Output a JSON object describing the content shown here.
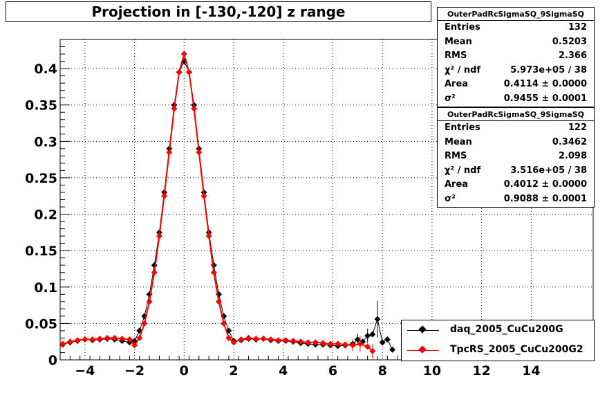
{
  "title": "Projection in [-130,-120] z range",
  "stats": [
    {
      "name": "OuterPadRcSigmaSQ_9SigmaSQ",
      "rows": [
        {
          "label": "Entries",
          "value": "132"
        },
        {
          "label": "Mean",
          "value": "0.5203"
        },
        {
          "label": "RMS",
          "value": "2.366"
        },
        {
          "label": "χ² / ndf",
          "value": "5.973e+05 / 38"
        },
        {
          "label": "Area",
          "value": "0.4114 ± 0.0000"
        },
        {
          "label": "σ²",
          "value": "0.9455 ± 0.0001"
        }
      ]
    },
    {
      "name": "OuterPadRcSigmaSQ_9SigmaSQ",
      "rows": [
        {
          "label": "Entries",
          "value": "122"
        },
        {
          "label": "Mean",
          "value": "0.3462"
        },
        {
          "label": "RMS",
          "value": "2.098"
        },
        {
          "label": "χ² / ndf",
          "value": "3.516e+05 / 38"
        },
        {
          "label": "Area",
          "value": "0.4012 ± 0.0000"
        },
        {
          "label": "σ²",
          "value": "0.9088 ± 0.0001"
        }
      ]
    }
  ],
  "legend": [
    {
      "label": "daq_2005_CuCu200G",
      "color": "#000000"
    },
    {
      "label": "TpcRS_2005_CuCu200G2",
      "color": "#ff0000"
    }
  ],
  "chart_data": {
    "type": "scatter",
    "title": "Projection in [-130,-120] z range",
    "xlabel": "",
    "ylabel": "",
    "xlim": [
      -5,
      16.5
    ],
    "ylim": [
      0,
      0.44
    ],
    "xticks": [
      "−4",
      "−2",
      "0",
      "2",
      "4",
      "6",
      "8",
      "10",
      "12",
      "14"
    ],
    "xtick_values": [
      -4,
      -2,
      0,
      2,
      4,
      6,
      8,
      10,
      12,
      14
    ],
    "yticks": [
      "0",
      "0.05",
      "0.1",
      "0.15",
      "0.2",
      "0.25",
      "0.3",
      "0.35",
      "0.4"
    ],
    "ytick_values": [
      0,
      0.05,
      0.1,
      0.15,
      0.2,
      0.25,
      0.3,
      0.35,
      0.4
    ],
    "grid": true,
    "series": [
      {
        "name": "daq_2005_CuCu200G",
        "color": "#000000",
        "points": [
          [
            -4.9,
            0.021
          ],
          [
            -4.6,
            0.024
          ],
          [
            -4.3,
            0.026
          ],
          [
            -4.0,
            0.028
          ],
          [
            -3.7,
            0.027
          ],
          [
            -3.4,
            0.028
          ],
          [
            -3.1,
            0.029
          ],
          [
            -2.8,
            0.028
          ],
          [
            -2.5,
            0.026
          ],
          [
            -2.2,
            0.024
          ],
          [
            -2.0,
            0.026
          ],
          [
            -1.8,
            0.04
          ],
          [
            -1.6,
            0.06
          ],
          [
            -1.4,
            0.09
          ],
          [
            -1.2,
            0.13
          ],
          [
            -1.0,
            0.175
          ],
          [
            -0.8,
            0.23
          ],
          [
            -0.6,
            0.29
          ],
          [
            -0.4,
            0.35
          ],
          [
            -0.2,
            0.395
          ],
          [
            0.0,
            0.41
          ],
          [
            0.2,
            0.395
          ],
          [
            0.4,
            0.35
          ],
          [
            0.6,
            0.29
          ],
          [
            0.8,
            0.23
          ],
          [
            1.0,
            0.175
          ],
          [
            1.2,
            0.13
          ],
          [
            1.4,
            0.09
          ],
          [
            1.6,
            0.06
          ],
          [
            1.8,
            0.04
          ],
          [
            2.0,
            0.026
          ],
          [
            2.3,
            0.027
          ],
          [
            2.6,
            0.029
          ],
          [
            2.9,
            0.028
          ],
          [
            3.2,
            0.029
          ],
          [
            3.5,
            0.027
          ],
          [
            3.8,
            0.026
          ],
          [
            4.1,
            0.026
          ],
          [
            4.4,
            0.025
          ],
          [
            4.7,
            0.023
          ],
          [
            5.0,
            0.022
          ],
          [
            5.3,
            0.021
          ],
          [
            5.6,
            0.021
          ],
          [
            5.9,
            0.02
          ],
          [
            6.2,
            0.019
          ],
          [
            6.5,
            0.02
          ],
          [
            6.8,
            0.022
          ],
          [
            7.0,
            0.028
          ],
          [
            7.2,
            0.025
          ],
          [
            7.4,
            0.033
          ],
          [
            7.6,
            0.035
          ],
          [
            7.8,
            0.056
          ],
          [
            8.0,
            0.024
          ],
          [
            8.2,
            0.028
          ],
          [
            8.4,
            0.014
          ]
        ],
        "errors": [
          [
            7.8,
            0.025
          ],
          [
            7.4,
            0.01
          ],
          [
            7.0,
            0.008
          ]
        ]
      },
      {
        "name": "TpcRS_2005_CuCu200G2",
        "color": "#ff0000",
        "points": [
          [
            -4.9,
            0.022
          ],
          [
            -4.6,
            0.025
          ],
          [
            -4.3,
            0.027
          ],
          [
            -4.0,
            0.028
          ],
          [
            -3.7,
            0.028
          ],
          [
            -3.4,
            0.029
          ],
          [
            -3.1,
            0.03
          ],
          [
            -2.8,
            0.03
          ],
          [
            -2.5,
            0.029
          ],
          [
            -2.2,
            0.028
          ],
          [
            -2.0,
            0.02
          ],
          [
            -1.8,
            0.03
          ],
          [
            -1.6,
            0.05
          ],
          [
            -1.4,
            0.08
          ],
          [
            -1.2,
            0.12
          ],
          [
            -1.0,
            0.17
          ],
          [
            -0.8,
            0.225
          ],
          [
            -0.6,
            0.285
          ],
          [
            -0.4,
            0.345
          ],
          [
            -0.2,
            0.395
          ],
          [
            0.0,
            0.42
          ],
          [
            0.2,
            0.395
          ],
          [
            0.4,
            0.345
          ],
          [
            0.6,
            0.285
          ],
          [
            0.8,
            0.225
          ],
          [
            1.0,
            0.17
          ],
          [
            1.2,
            0.12
          ],
          [
            1.4,
            0.08
          ],
          [
            1.6,
            0.05
          ],
          [
            1.8,
            0.03
          ],
          [
            2.0,
            0.024
          ],
          [
            2.3,
            0.028
          ],
          [
            2.6,
            0.03
          ],
          [
            2.9,
            0.029
          ],
          [
            3.2,
            0.029
          ],
          [
            3.5,
            0.028
          ],
          [
            3.8,
            0.027
          ],
          [
            4.1,
            0.027
          ],
          [
            4.4,
            0.026
          ],
          [
            4.7,
            0.025
          ],
          [
            5.0,
            0.024
          ],
          [
            5.3,
            0.024
          ],
          [
            5.6,
            0.023
          ],
          [
            5.9,
            0.022
          ],
          [
            6.2,
            0.022
          ],
          [
            6.5,
            0.021
          ],
          [
            6.8,
            0.02
          ],
          [
            7.1,
            0.022
          ],
          [
            7.4,
            0.018
          ],
          [
            7.6,
            0.012
          ]
        ],
        "errors": [
          [
            7.6,
            0.01
          ],
          [
            7.1,
            0.01
          ],
          [
            6.8,
            0.008
          ]
        ]
      }
    ]
  }
}
